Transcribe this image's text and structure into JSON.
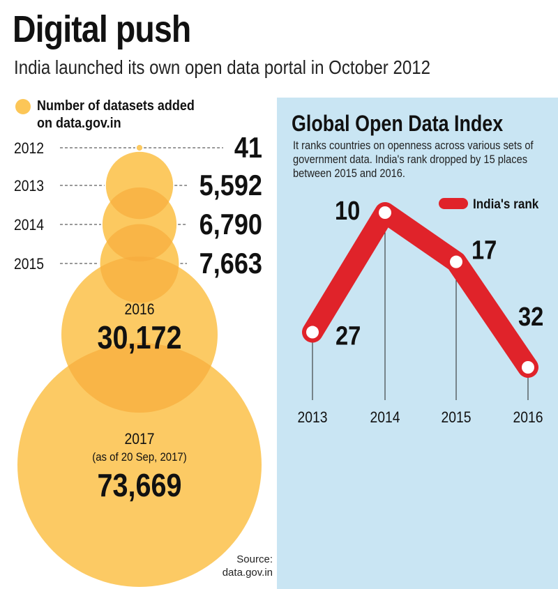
{
  "header": {
    "title": "Digital push",
    "subtitle": "India launched its own open data portal in October 2012"
  },
  "colors": {
    "bubble": "#fcc657",
    "bubble_overlap": "#f5a83a",
    "line": "#e0232a",
    "panel_bg": "#c9e5f3"
  },
  "rank_panel": {
    "title": "Global Open Data Index",
    "description": "It ranks countries on openness across various sets of government data. India's rank dropped by 15 places between 2015 and 2016."
  },
  "source": "Source: data.gov.in",
  "chart_data": [
    {
      "type": "bubble",
      "legend": "Number of datasets added on data.gov.in",
      "legend_lines": [
        "Number of datasets added",
        "on data.gov.in"
      ],
      "categories": [
        "2012",
        "2013",
        "2014",
        "2015",
        "2016",
        "2017"
      ],
      "values": [
        41,
        5592,
        6790,
        7663,
        30172,
        73669
      ],
      "labels": [
        "41",
        "5,592",
        "6,790",
        "7,663",
        "30,172",
        "73,669"
      ],
      "notes": {
        "2017": "(as of 20 Sep, 2017)"
      }
    },
    {
      "type": "line",
      "legend": "India's rank",
      "categories": [
        "2013",
        "2014",
        "2015",
        "2016"
      ],
      "series": [
        {
          "name": "India's rank",
          "values": [
            27,
            10,
            17,
            32
          ]
        }
      ],
      "y_inverted": true,
      "grid": false,
      "legend_position": "top-right"
    }
  ]
}
